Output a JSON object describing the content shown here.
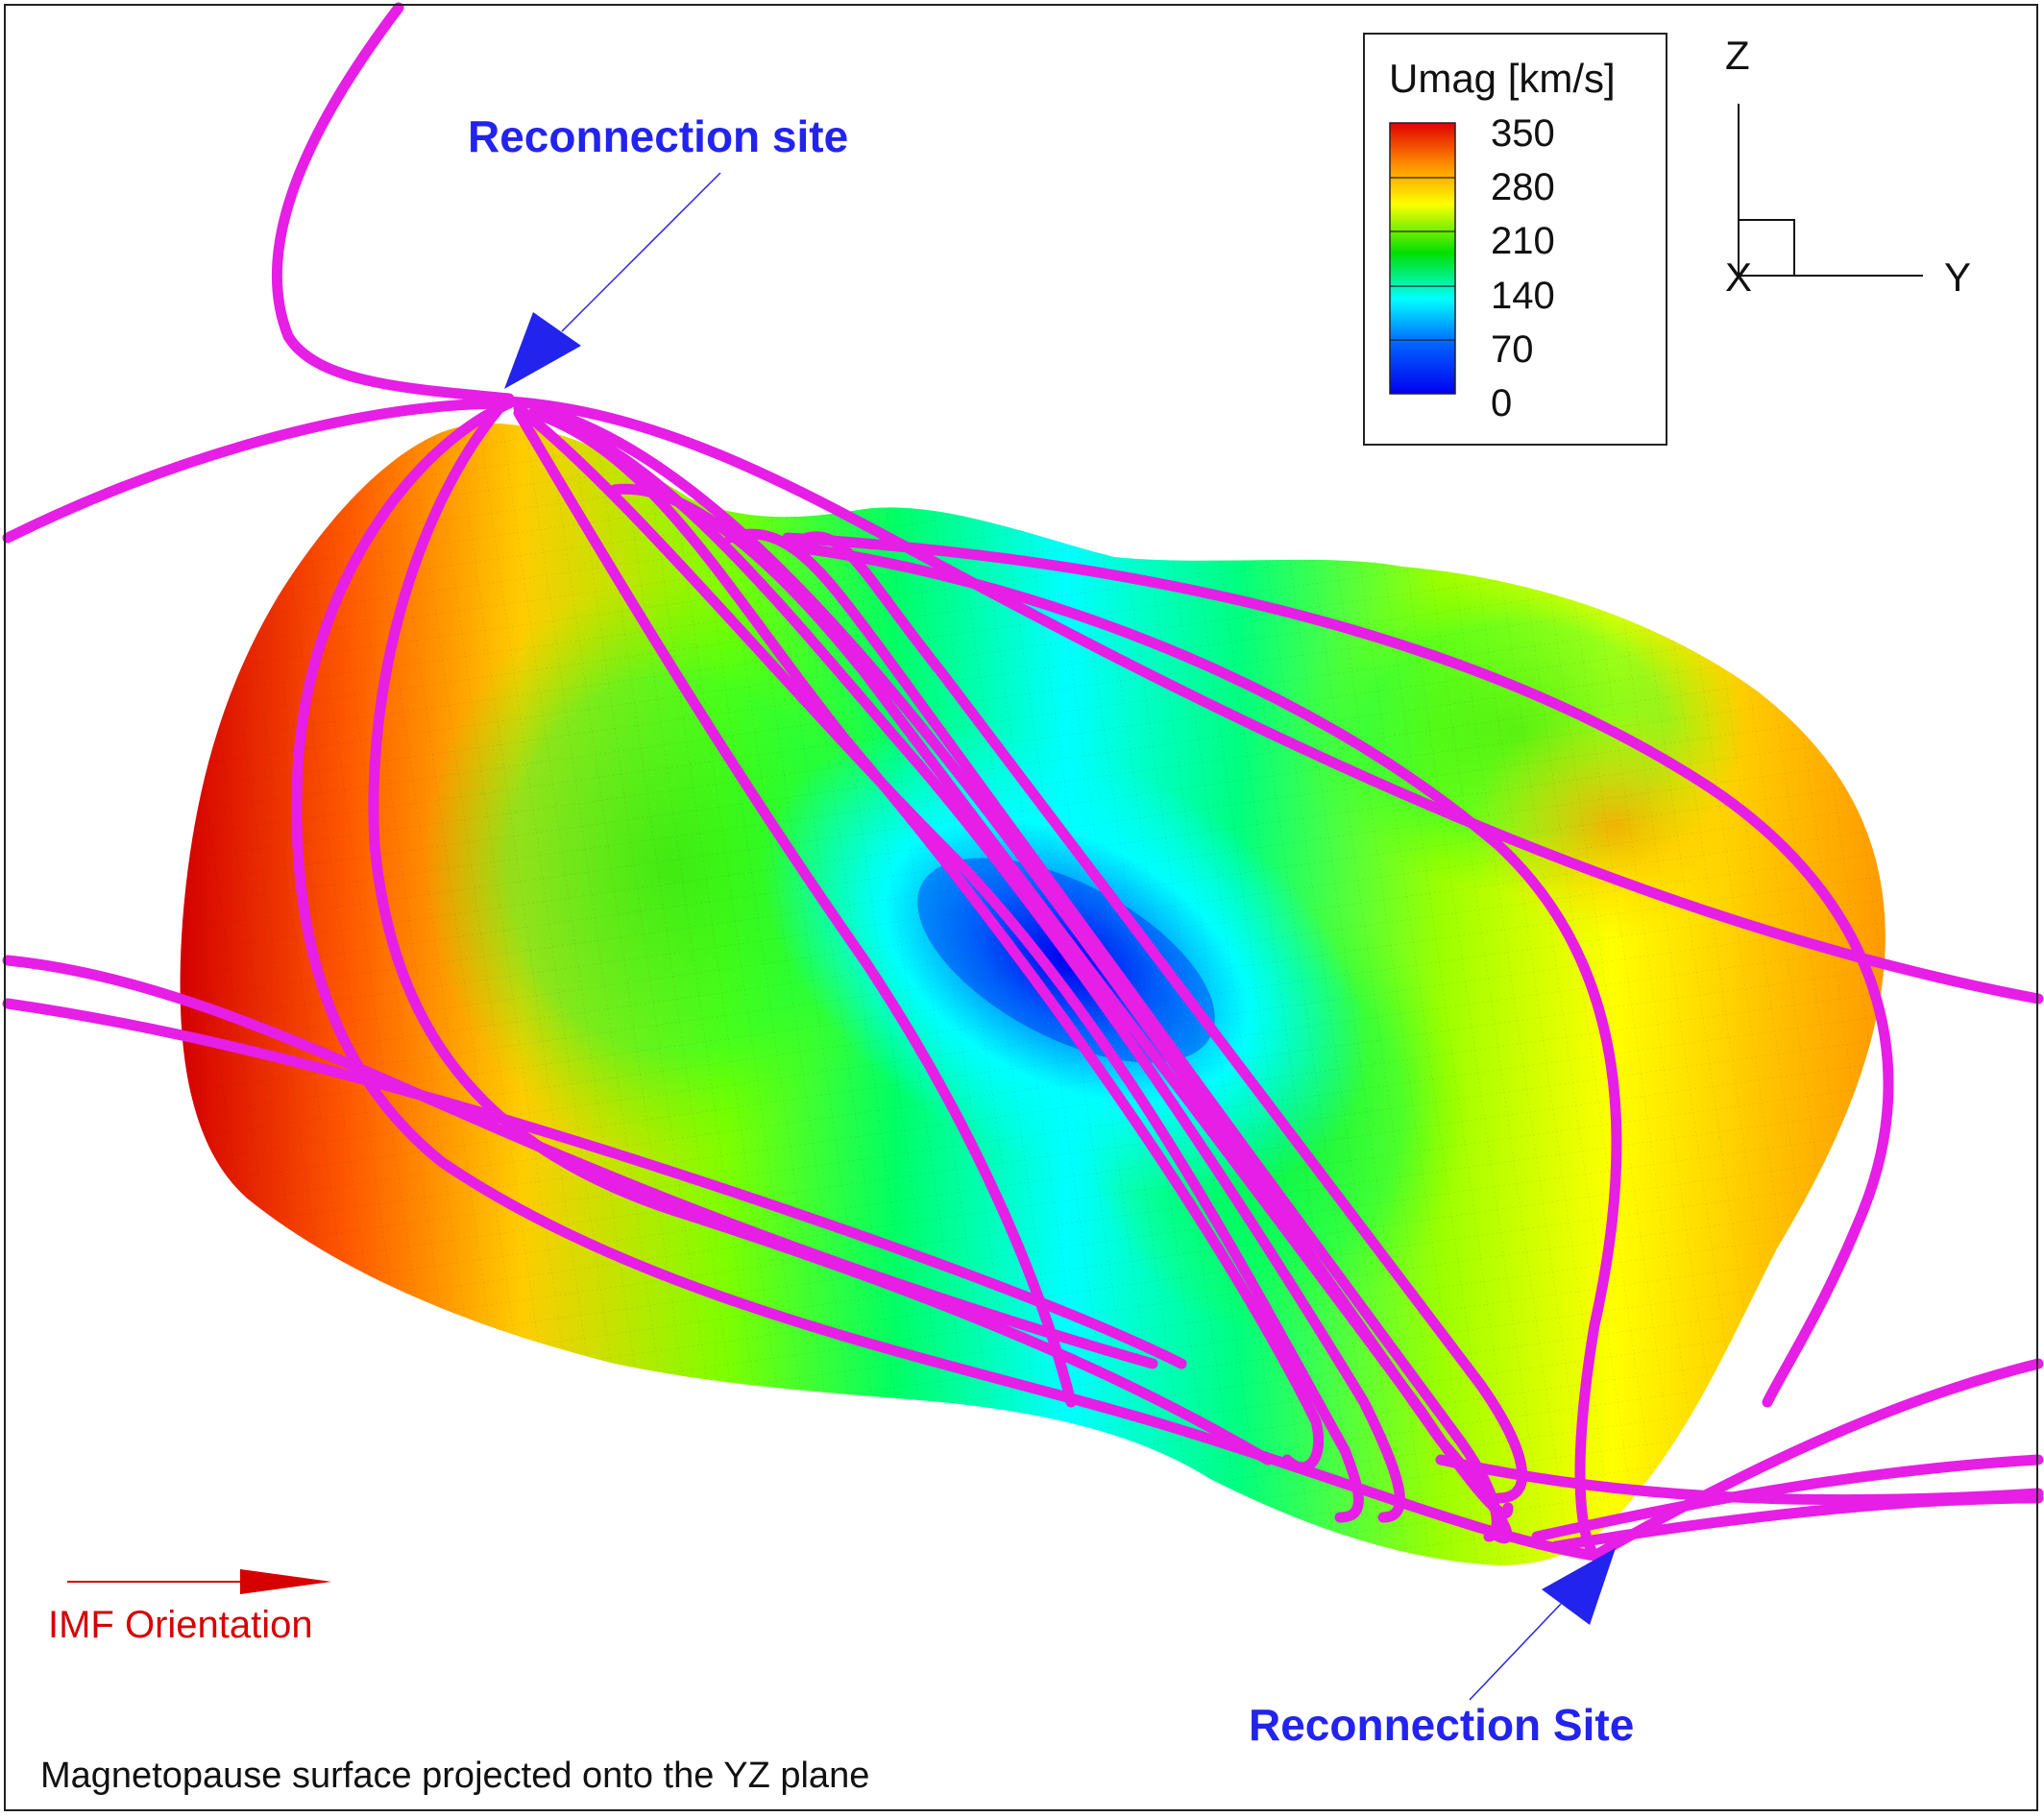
{
  "legend": {
    "title": "Umag [km/s]",
    "ticks": [
      "350",
      "280",
      "210",
      "140",
      "70",
      "0"
    ],
    "colors": [
      "#e00000",
      "#ff8a00",
      "#ffff00",
      "#00e000",
      "#00ffff",
      "#0050ff",
      "#0000ff"
    ]
  },
  "axes": {
    "z_label": "Z",
    "x_label": "X",
    "y_label": "Y"
  },
  "annotations": {
    "top_reconnection": "Reconnection site",
    "bottom_reconnection": "Reconnection Site",
    "imf_label": "IMF Orientation",
    "caption": "Magnetopause surface projected onto the YZ plane"
  },
  "colors": {
    "field_lines": "#e61ee6",
    "annotation_text": "#2323ee",
    "imf_arrow": "#d60000",
    "high_speed": "#e00000",
    "low_speed": "#0000ff"
  }
}
